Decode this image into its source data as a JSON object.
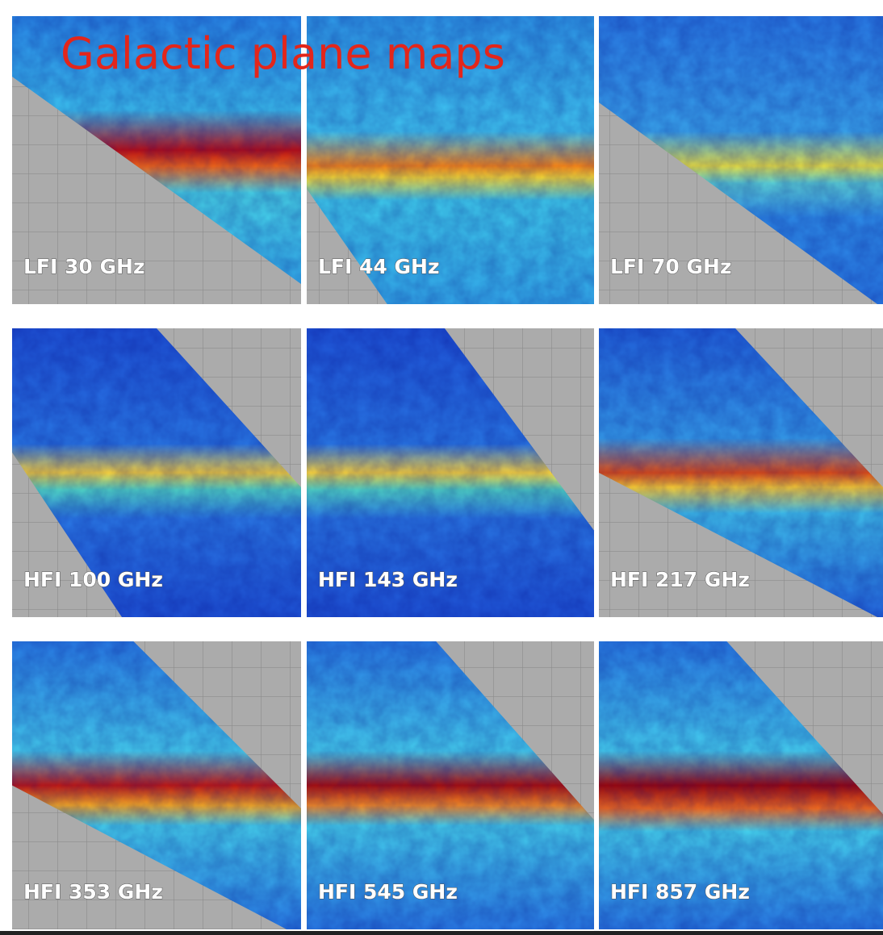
{
  "title": "Galactic plane maps",
  "panels": [
    {
      "label": "LFI 30 GHz"
    },
    {
      "label": "LFI 44 GHz"
    },
    {
      "label": "LFI 70 GHz"
    },
    {
      "label": "HFI 100 GHz"
    },
    {
      "label": "HFI 143 GHz"
    },
    {
      "label": "HFI 217 GHz"
    },
    {
      "label": "HFI 353 GHz"
    },
    {
      "label": "HFI 545 GHz"
    },
    {
      "label": "HFI 857 GHz"
    }
  ]
}
